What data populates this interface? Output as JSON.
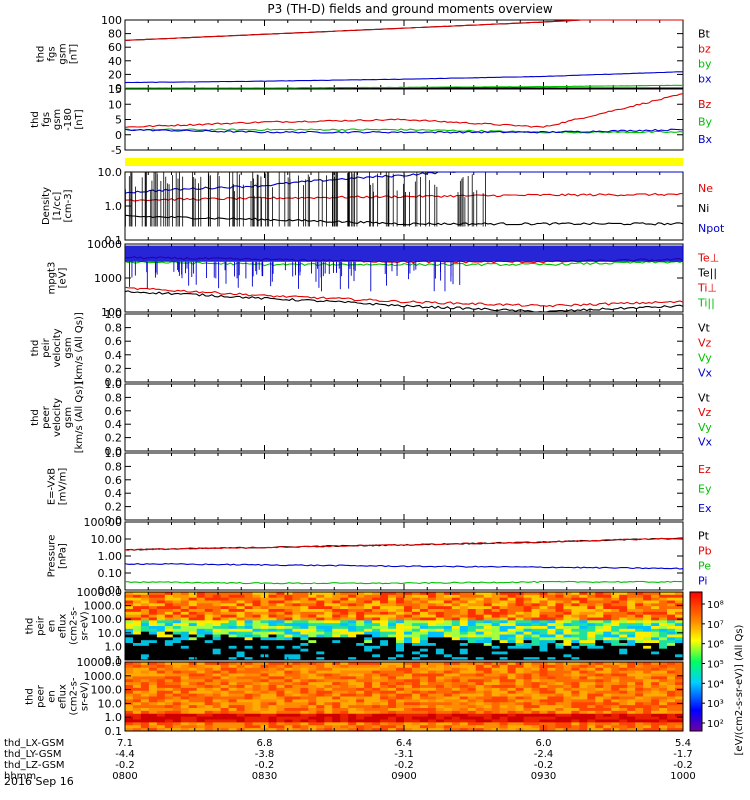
{
  "title": "P3 (TH-D) fields and ground moments overview",
  "date_label": "2016 Sep 16",
  "colors": {
    "black": "#000000",
    "red": "#e00000",
    "green": "#00c000",
    "blue": "#0000d0",
    "yellow": "#ffff00"
  },
  "panels": [
    {
      "id": "fgs",
      "ylabel": [
        "thd",
        "fgs",
        "gsm",
        "[nT]"
      ],
      "yticks": [
        "100",
        "80",
        "60",
        "40",
        "20",
        "0"
      ],
      "ylim": [
        0,
        100
      ],
      "legend": [
        {
          "text": "Bt",
          "color": "#000000"
        },
        {
          "text": "bz",
          "color": "#e00000"
        },
        {
          "text": "by",
          "color": "#00c000"
        },
        {
          "text": "bx",
          "color": "#0000d0"
        }
      ]
    },
    {
      "id": "fgs_dsl",
      "ylabel": [
        "thd",
        "fgs",
        "gsm",
        "-180",
        "[nT]"
      ],
      "yticks": [
        "15",
        "10",
        "5",
        "0",
        "-5"
      ],
      "ylim": [
        -8,
        16
      ],
      "legend": [
        {
          "text": "Bz",
          "color": "#e00000"
        },
        {
          "text": "By",
          "color": "#00c000"
        },
        {
          "text": "Bx",
          "color": "#0000d0"
        }
      ]
    },
    {
      "id": "density",
      "ylabel": [
        "Density",
        "[1/cc]",
        "[cm-3]"
      ],
      "yticks": [
        "10.0",
        "1.0",
        "0.1"
      ],
      "log": true,
      "legend": [
        {
          "text": "Ne",
          "color": "#e00000"
        },
        {
          "text": "Ni",
          "color": "#000000"
        },
        {
          "text": "Npot",
          "color": "#0000d0"
        }
      ]
    },
    {
      "id": "temperature",
      "ylabel": [
        "mpgt3",
        "[eV]"
      ],
      "yticks": [
        "10000",
        "1000",
        "100"
      ],
      "log": true,
      "legend": [
        {
          "text": "Te⊥",
          "color": "#e00000"
        },
        {
          "text": "Te||",
          "color": "#000000"
        },
        {
          "text": "Ti⊥",
          "color": "#e00000"
        },
        {
          "text": "Ti||",
          "color": "#00c000"
        }
      ]
    },
    {
      "id": "peir_velocity",
      "ylabel": [
        "thd",
        "peir",
        "velocity",
        "gsm",
        "[km/s (All Qs)]"
      ],
      "yticks": [
        "1.0",
        "0.8",
        "0.6",
        "0.4",
        "0.2",
        "0.0"
      ],
      "ylim": [
        0,
        1
      ],
      "legend": [
        {
          "text": "Vt",
          "color": "#000000"
        },
        {
          "text": "Vz",
          "color": "#e00000"
        },
        {
          "text": "Vy",
          "color": "#00c000"
        },
        {
          "text": "Vx",
          "color": "#0000d0"
        }
      ]
    },
    {
      "id": "peer_velocity",
      "ylabel": [
        "thd",
        "peer",
        "velocity",
        "gsm",
        "[km/s (All Qs)]"
      ],
      "yticks": [
        "1.0",
        "0.8",
        "0.6",
        "0.4",
        "0.2",
        "0.0"
      ],
      "ylim": [
        0,
        1
      ],
      "legend": [
        {
          "text": "Vt",
          "color": "#000000"
        },
        {
          "text": "Vz",
          "color": "#e00000"
        },
        {
          "text": "Vy",
          "color": "#00c000"
        },
        {
          "text": "Vx",
          "color": "#0000d0"
        }
      ]
    },
    {
      "id": "efield",
      "ylabel": [
        "E=-VxB",
        "[mV/m]"
      ],
      "yticks": [
        "1.0",
        "0.8",
        "0.6",
        "0.4",
        "0.2",
        "0.0"
      ],
      "ylim": [
        0,
        1
      ],
      "legend": [
        {
          "text": "Ez",
          "color": "#e00000"
        },
        {
          "text": "Ey",
          "color": "#00c000"
        },
        {
          "text": "Ex",
          "color": "#0000d0"
        }
      ]
    },
    {
      "id": "pressure",
      "ylabel": [
        "Pressure",
        "[nPa]"
      ],
      "yticks": [
        "100.00",
        "10.00",
        "1.00",
        "0.10",
        "0.01"
      ],
      "log": true,
      "legend": [
        {
          "text": "Pt",
          "color": "#000000"
        },
        {
          "text": "Pb",
          "color": "#e00000"
        },
        {
          "text": "Pe",
          "color": "#00c000"
        },
        {
          "text": "Pi",
          "color": "#0000d0"
        }
      ]
    },
    {
      "id": "peir_eflux",
      "ylabel": [
        "thd",
        "peir",
        "en",
        "eflux",
        "(cm2-s-",
        "sr-eV)"
      ],
      "yticks": [
        "10000.0",
        "1000.0",
        "100.0",
        "10.0",
        "1.0",
        "0.1"
      ],
      "spectrogram": true
    },
    {
      "id": "peer_eflux",
      "ylabel": [
        "thd",
        "peer",
        "en",
        "eflux",
        "(cm2-s-",
        "sr-eV)"
      ],
      "yticks": [
        "10000.0",
        "1000.0",
        "100.0",
        "10.0",
        "1.0",
        "0.1"
      ],
      "spectrogram": true
    }
  ],
  "colorbar": {
    "label": "[eV/(cm2-s-sr-eV)] (All Qs)",
    "label2": "[eV/(cm2-s-sr-eV)] (All Qs)",
    "ticks": [
      "10⁸",
      "10⁷",
      "10⁶",
      "10⁵",
      "10⁴",
      "10³",
      "10²"
    ]
  },
  "xaxis": {
    "row_labels": [
      "thd_LX-GSM",
      "thd_LY-GSM",
      "thd_LZ-GSM",
      "hhmm"
    ],
    "columns": [
      [
        "7.1",
        "-4.4",
        "-0.2",
        "0800"
      ],
      [
        "6.8",
        "-3.8",
        "-0.2",
        "0830"
      ],
      [
        "6.4",
        "-3.1",
        "-0.2",
        "0900"
      ],
      [
        "6.0",
        "-2.4",
        "-0.2",
        "0930"
      ],
      [
        "5.4",
        "-1.7",
        "-0.2",
        "1000"
      ]
    ]
  },
  "chart_data": {
    "type": "line",
    "title": "P3 (TH-D) fields and ground moments overview",
    "x": [
      "0800",
      "0830",
      "0900",
      "0930",
      "1000"
    ],
    "series": [
      {
        "name": "Bt",
        "panel": "fgs",
        "values": [
          70,
          79,
          88,
          97,
          108
        ]
      },
      {
        "name": "bz",
        "panel": "fgs",
        "values": [
          70,
          79,
          88,
          97,
          108
        ]
      },
      {
        "name": "by",
        "panel": "fgs",
        "values": [
          0,
          0,
          1,
          2,
          4
        ]
      },
      {
        "name": "bx",
        "panel": "fgs",
        "values": [
          8,
          10,
          13,
          17,
          24
        ]
      },
      {
        "name": "Bz",
        "panel": "fgs_dsl",
        "values": [
          1,
          3,
          4,
          1,
          14
        ]
      },
      {
        "name": "By",
        "panel": "fgs_dsl",
        "values": [
          0,
          0,
          0,
          -1,
          -1
        ]
      },
      {
        "name": "Bx",
        "panel": "fgs_dsl",
        "values": [
          0,
          -1,
          -1,
          -1,
          0
        ]
      },
      {
        "name": "Ne",
        "panel": "density",
        "values": [
          1.5,
          1.7,
          1.9,
          2.1,
          2.2
        ]
      },
      {
        "name": "Ni",
        "panel": "density",
        "values": [
          0.5,
          0.4,
          0.3,
          0.3,
          0.3
        ]
      },
      {
        "name": "Npot",
        "panel": "density",
        "values": [
          2.5,
          4,
          8,
          15,
          30
        ]
      },
      {
        "name": "Te⊥",
        "panel": "temperature",
        "values": [
          500,
          300,
          200,
          150,
          200
        ]
      },
      {
        "name": "Te||",
        "panel": "temperature",
        "values": [
          400,
          250,
          150,
          100,
          150
        ]
      },
      {
        "name": "Ti⊥",
        "panel": "temperature",
        "values": [
          4000,
          3500,
          3000,
          3000,
          3500
        ]
      },
      {
        "name": "Ti||",
        "panel": "temperature",
        "values": [
          3000,
          2500,
          2500,
          2500,
          3000
        ]
      },
      {
        "name": "Pt",
        "panel": "pressure",
        "values": [
          2.3,
          3.2,
          4.5,
          6.5,
          11
        ]
      },
      {
        "name": "Pb",
        "panel": "pressure",
        "values": [
          2.3,
          3.2,
          4.5,
          6.5,
          11
        ]
      },
      {
        "name": "Pe",
        "panel": "pressure",
        "values": [
          0.03,
          0.025,
          0.025,
          0.03,
          0.03
        ]
      },
      {
        "name": "Pi",
        "panel": "pressure",
        "values": [
          0.35,
          0.3,
          0.25,
          0.22,
          0.18
        ]
      }
    ]
  }
}
